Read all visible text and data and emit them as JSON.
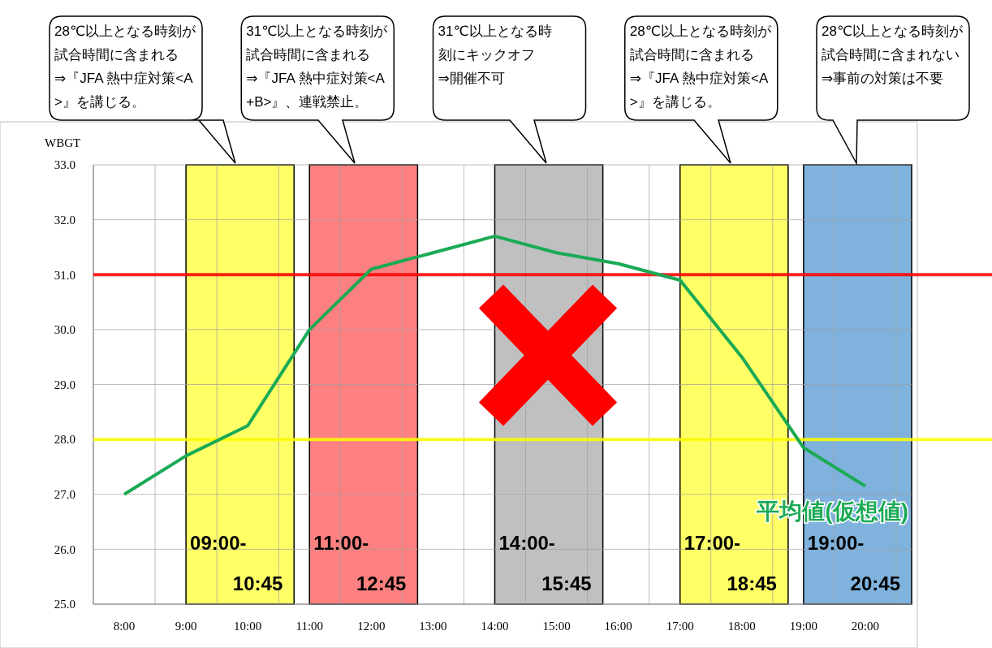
{
  "chart_data": {
    "type": "line",
    "ylabel": "WBGT",
    "x": [
      8,
      9,
      10,
      11,
      12,
      13,
      14,
      15,
      16,
      17,
      18,
      19,
      20
    ],
    "series": [
      {
        "name": "平均値(仮想値)",
        "color": "#1aaa55",
        "values": [
          27.0,
          27.7,
          28.25,
          30.0,
          31.1,
          31.4,
          31.7,
          31.4,
          31.2,
          30.9,
          29.5,
          27.85,
          27.15
        ]
      }
    ],
    "xlim": [
      7.5,
      20.75
    ],
    "xticks": [
      {
        "value": 7.5,
        "label": null
      },
      {
        "value": 8,
        "label": "8:00"
      },
      {
        "value": 8.5,
        "label": null
      },
      {
        "value": 9,
        "label": "9:00"
      },
      {
        "value": 9.5,
        "label": null
      },
      {
        "value": 10,
        "label": "10:00"
      },
      {
        "value": 10.5,
        "label": null
      },
      {
        "value": 11,
        "label": "11:00"
      },
      {
        "value": 11.5,
        "label": null
      },
      {
        "value": 12,
        "label": "12:00"
      },
      {
        "value": 12.5,
        "label": null
      },
      {
        "value": 13,
        "label": "13:00"
      },
      {
        "value": 13.5,
        "label": null
      },
      {
        "value": 14,
        "label": "14:00"
      },
      {
        "value": 14.5,
        "label": null
      },
      {
        "value": 15,
        "label": "15:00"
      },
      {
        "value": 15.5,
        "label": null
      },
      {
        "value": 16,
        "label": "16:00"
      },
      {
        "value": 16.5,
        "label": null
      },
      {
        "value": 17,
        "label": "17:00"
      },
      {
        "value": 17.5,
        "label": null
      },
      {
        "value": 18,
        "label": "18:00"
      },
      {
        "value": 18.5,
        "label": null
      },
      {
        "value": 19,
        "label": "19:00"
      },
      {
        "value": 19.5,
        "label": null
      },
      {
        "value": 20,
        "label": "20:00"
      },
      {
        "value": 20.5,
        "label": null
      }
    ],
    "ylim": [
      25,
      33
    ],
    "yticks": [
      {
        "value": 25,
        "label": "25.0"
      },
      {
        "value": 26,
        "label": "26.0"
      },
      {
        "value": 27,
        "label": "27.0"
      },
      {
        "value": 28,
        "label": "28.0"
      },
      {
        "value": 29,
        "label": "29.0"
      },
      {
        "value": 30,
        "label": "30.0"
      },
      {
        "value": 31,
        "label": "31.0"
      },
      {
        "value": 32,
        "label": "32.0"
      },
      {
        "value": 33,
        "label": "33.0"
      }
    ],
    "grid": true,
    "marker": "none",
    "line_style": "solid",
    "ref_lines": [
      {
        "axis": "y",
        "value": 31,
        "color": "#ff0000"
      },
      {
        "axis": "y",
        "value": 28,
        "color": "#ffff00"
      }
    ],
    "bands": [
      {
        "axis": "x",
        "from": 9,
        "to": 10.75,
        "label": "09:00-\n10:45",
        "color": "#ffff66"
      },
      {
        "axis": "x",
        "from": 11,
        "to": 12.75,
        "label": "11:00-\n12:45",
        "color": "#ff8080"
      },
      {
        "axis": "x",
        "from": 14,
        "to": 15.75,
        "label": "14:00-\n15:45",
        "color": "#c0c0c0"
      },
      {
        "axis": "x",
        "from": 17,
        "to": 18.75,
        "label": "17:00-\n18:45",
        "color": "#ffff66"
      },
      {
        "axis": "x",
        "from": 19,
        "to": 20.75,
        "label": "19:00-\n20:45",
        "color": "#7fb2dc"
      }
    ],
    "annotations": [
      "28℃以上となる時刻が試合時間に含まれる⇒『JFA 熱中症対策<A>』を講じる。",
      "31℃以上となる時刻が試合時間に含まれる⇒『JFA 熱中症対策<A+B>』、連戦禁止。",
      "31℃以上となる時刻にキックオフ⇒開催不可",
      "28℃以上となる時刻が試合時間に含まれる⇒『JFA 熱中症対策<A>』を講じる。",
      "28℃以上となる時刻が試合時間に含まれない⇒事前の対策は不要"
    ]
  }
}
